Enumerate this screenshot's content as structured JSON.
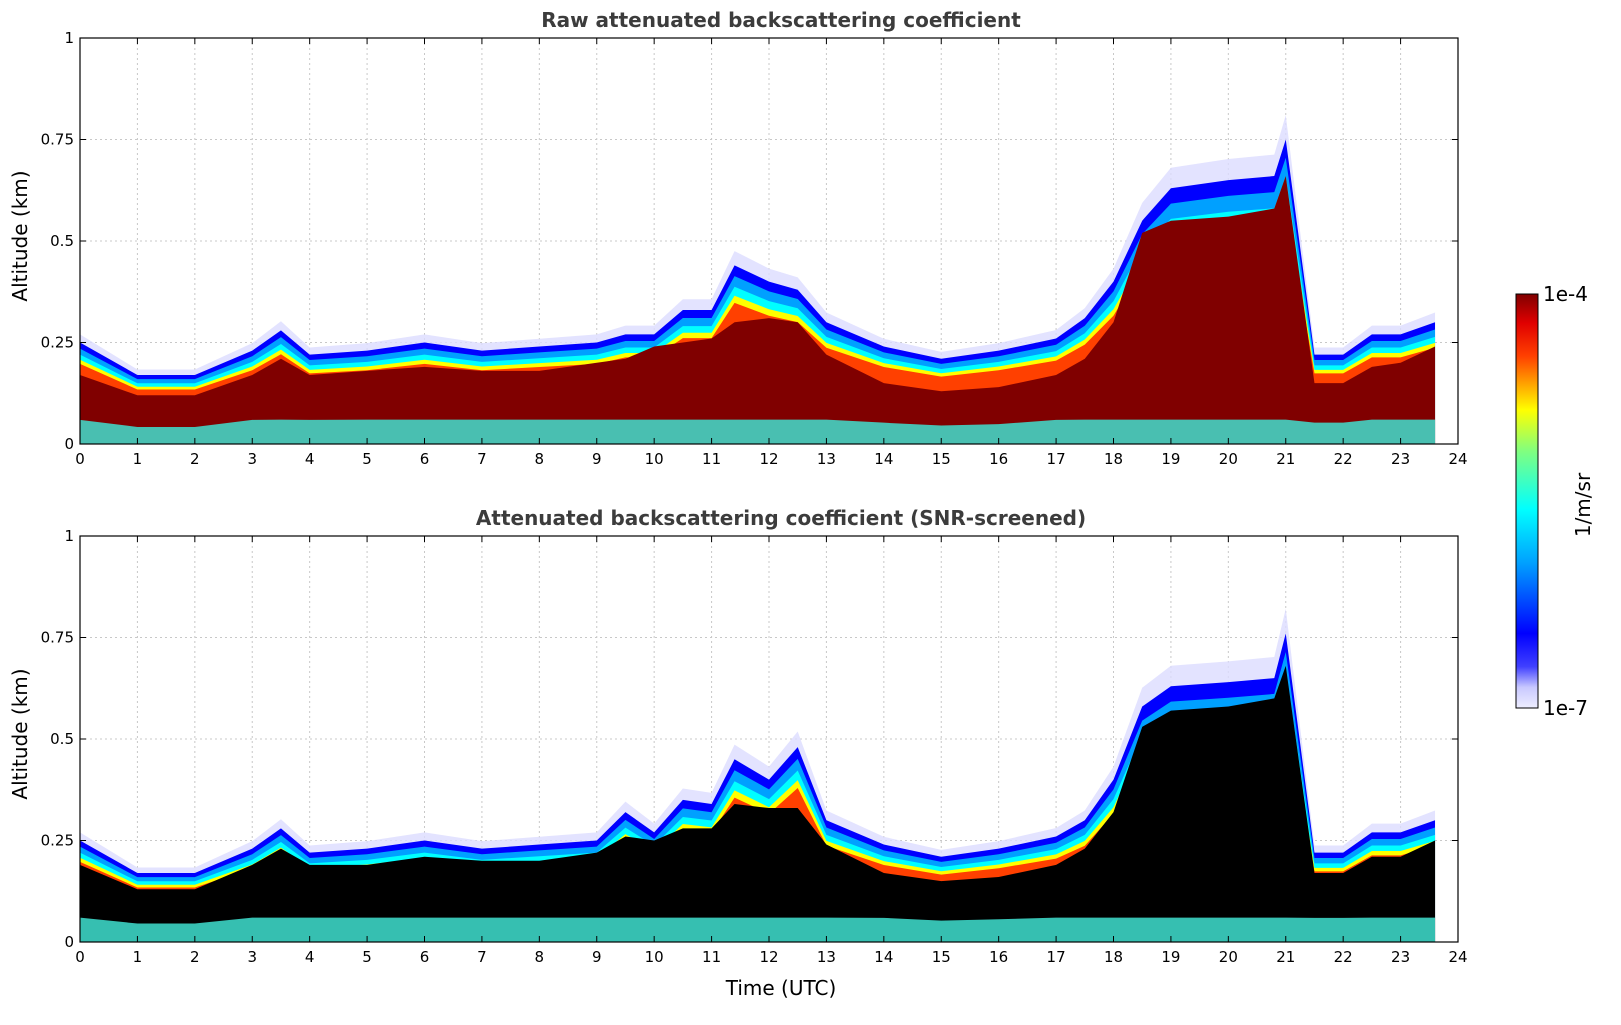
{
  "chart_data": [
    {
      "type": "heatmap",
      "title": "Raw attenuated backscattering coefficient",
      "xlabel": "",
      "ylabel": "Altitude (km)",
      "xlim": [
        0,
        24
      ],
      "ylim": [
        0,
        1
      ],
      "x_ticks": [
        "0",
        "1",
        "2",
        "3",
        "4",
        "5",
        "6",
        "7",
        "8",
        "9",
        "10",
        "11",
        "12",
        "13",
        "14",
        "15",
        "16",
        "17",
        "18",
        "19",
        "20",
        "21",
        "22",
        "23",
        "24"
      ],
      "y_ticks": [
        "0",
        "0.25",
        "0.5",
        "0.75",
        "1"
      ],
      "grid": true,
      "layer_top_km": {
        "x": [
          0,
          1,
          2,
          3,
          3.5,
          4,
          5,
          6,
          7,
          8,
          9,
          9.5,
          10,
          10.5,
          11,
          11.4,
          12,
          12.5,
          13,
          14,
          15,
          16,
          17,
          17.5,
          18,
          18.5,
          19,
          20,
          20.8,
          21,
          21.5,
          22,
          22.5,
          23,
          23.6
        ],
        "y": [
          0.25,
          0.17,
          0.17,
          0.23,
          0.28,
          0.22,
          0.23,
          0.25,
          0.23,
          0.24,
          0.25,
          0.27,
          0.27,
          0.33,
          0.33,
          0.44,
          0.4,
          0.38,
          0.3,
          0.24,
          0.21,
          0.23,
          0.26,
          0.31,
          0.4,
          0.55,
          0.63,
          0.65,
          0.66,
          0.75,
          0.22,
          0.22,
          0.27,
          0.27,
          0.3
        ]
      },
      "dense_layer_top_km": {
        "x": [
          0,
          1,
          2,
          3,
          3.5,
          4,
          5,
          6,
          7,
          8,
          9,
          9.5,
          10,
          10.5,
          11,
          11.4,
          12,
          12.5,
          13,
          14,
          15,
          16,
          17,
          17.5,
          18,
          18.5,
          19,
          20,
          20.8,
          21,
          21.5,
          22,
          22.5,
          23,
          23.6
        ],
        "y": [
          0.17,
          0.12,
          0.12,
          0.17,
          0.21,
          0.17,
          0.18,
          0.19,
          0.18,
          0.18,
          0.2,
          0.21,
          0.24,
          0.25,
          0.26,
          0.3,
          0.31,
          0.3,
          0.22,
          0.15,
          0.13,
          0.14,
          0.17,
          0.21,
          0.3,
          0.52,
          0.55,
          0.56,
          0.58,
          0.66,
          0.15,
          0.15,
          0.19,
          0.2,
          0.24
        ]
      }
    },
    {
      "type": "heatmap",
      "title": "Attenuated backscattering coefficient (SNR-screened)",
      "xlabel": "Time (UTC)",
      "ylabel": "Altitude (km)",
      "xlim": [
        0,
        24
      ],
      "ylim": [
        0,
        1
      ],
      "x_ticks": [
        "0",
        "1",
        "2",
        "3",
        "4",
        "5",
        "6",
        "7",
        "8",
        "9",
        "10",
        "11",
        "12",
        "13",
        "14",
        "15",
        "16",
        "17",
        "18",
        "19",
        "20",
        "21",
        "22",
        "23",
        "24"
      ],
      "y_ticks": [
        "0",
        "0.25",
        "0.5",
        "0.75",
        "1"
      ],
      "grid": true,
      "layer_top_km": {
        "x": [
          0,
          1,
          2,
          3,
          3.5,
          4,
          5,
          6,
          7,
          8,
          9,
          9.5,
          10,
          10.5,
          11,
          11.4,
          12,
          12.5,
          13,
          14,
          15,
          16,
          17,
          17.5,
          18,
          18.5,
          19,
          20,
          20.8,
          21,
          21.5,
          22,
          22.5,
          23,
          23.6
        ],
        "y": [
          0.25,
          0.17,
          0.17,
          0.23,
          0.28,
          0.22,
          0.23,
          0.25,
          0.23,
          0.24,
          0.25,
          0.32,
          0.27,
          0.35,
          0.34,
          0.45,
          0.4,
          0.48,
          0.3,
          0.24,
          0.21,
          0.23,
          0.26,
          0.3,
          0.4,
          0.58,
          0.63,
          0.64,
          0.65,
          0.76,
          0.22,
          0.22,
          0.27,
          0.27,
          0.3
        ]
      },
      "dense_layer_top_km": {
        "x": [
          0,
          1,
          2,
          3,
          3.5,
          4,
          5,
          6,
          7,
          8,
          9,
          9.5,
          10,
          10.5,
          11,
          11.4,
          12,
          12.5,
          13,
          14,
          15,
          16,
          17,
          17.5,
          18,
          18.5,
          19,
          20,
          20.8,
          21,
          21.5,
          22,
          22.5,
          23,
          23.6
        ],
        "y": [
          0.19,
          0.13,
          0.13,
          0.19,
          0.23,
          0.19,
          0.19,
          0.21,
          0.2,
          0.2,
          0.22,
          0.26,
          0.25,
          0.28,
          0.28,
          0.34,
          0.33,
          0.33,
          0.24,
          0.17,
          0.15,
          0.16,
          0.19,
          0.23,
          0.32,
          0.53,
          0.57,
          0.58,
          0.6,
          0.68,
          0.17,
          0.17,
          0.21,
          0.21,
          0.25
        ]
      }
    }
  ],
  "colorbar": {
    "label": "1/m/sr",
    "min_label": "1e-7",
    "max_label": "1e-4",
    "colormap": "jet",
    "scale": "log"
  }
}
